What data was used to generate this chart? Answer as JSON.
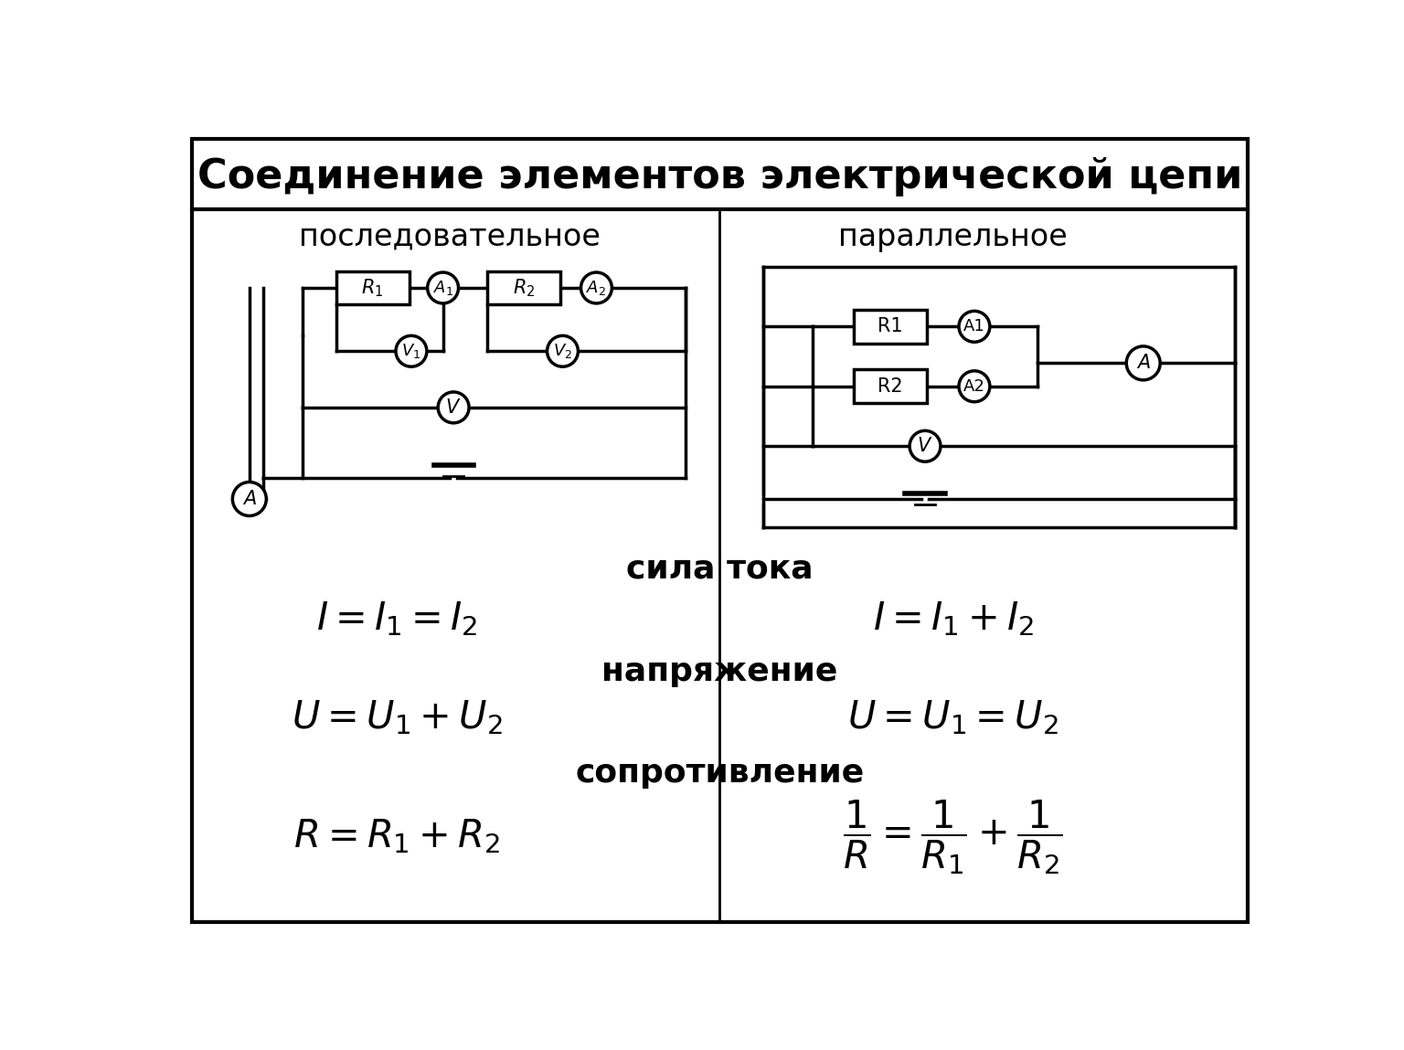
{
  "title": "Соединение элементов электрической цепи",
  "left_label": "последовательное",
  "right_label": "параллельное",
  "section_current": "сила тока",
  "section_voltage": "напряжение",
  "section_resistance": "сопротивление"
}
